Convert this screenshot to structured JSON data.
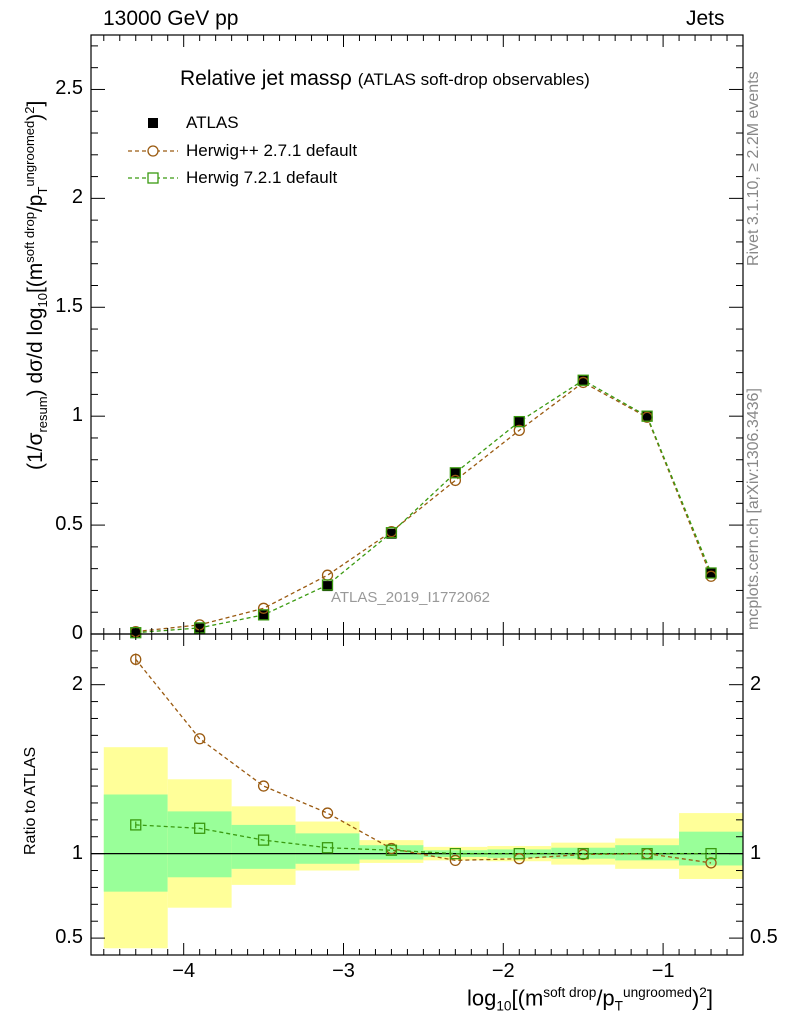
{
  "header": {
    "energy_label": "13000 GeV pp",
    "process_label": "Jets"
  },
  "side_labels": {
    "rivet": "Rivet 3.1.10, ≥ 2.2M events",
    "mcplots": "mcplots.cern.ch [arXiv:1306.3436]"
  },
  "analysis_id": "ATLAS_2019_I1772062",
  "colors": {
    "data": "#000000",
    "herwig_pp": "#9a5a10",
    "herwig_7": "#3a9a10",
    "band_inner": "#99ff99",
    "band_outer": "#ffff99"
  },
  "chart_data": {
    "type": "scatter",
    "title_main": "Relative jet massρ",
    "title_sub": "(ATLAS soft-drop observables)",
    "xlabel_parts": {
      "log": "log",
      "sub10": "10",
      "m": "[(m",
      "soft_drop": "soft drop",
      "slash_p": "/p",
      "T": "T",
      "ungroomed": "ungroomed",
      "close": ")",
      "two": "2",
      "end": "]"
    },
    "ylabel_parts": {
      "a": "(1/σ",
      "resum": "resum",
      "b": ") dσ/d log",
      "sub10": "10",
      "c": "[(m",
      "soft_drop": "soft drop",
      "slash_p": "/p",
      "T": "T",
      "ungroomed": "ungroomed",
      "close": ")",
      "two": "2",
      "end": "]"
    },
    "ratio_ylabel": "Ratio to ATLAS",
    "xlim": [
      -4.58,
      -0.5
    ],
    "ylim_main": [
      0,
      2.75
    ],
    "ylim_ratio": [
      0.4,
      2.3
    ],
    "x_ticks": [
      -4,
      -3,
      -2,
      -1
    ],
    "x_tick_labels": [
      "−4",
      "−3",
      "−2",
      "−1"
    ],
    "y_ticks_main": [
      0,
      0.5,
      1,
      1.5,
      2,
      2.5
    ],
    "y_tick_labels_main": [
      "0",
      "0.5",
      "1",
      "1.5",
      "2",
      "2.5"
    ],
    "y_ticks_ratio": [
      0.5,
      1,
      2
    ],
    "y_tick_labels_ratio": [
      "0.5",
      "1",
      "2"
    ],
    "bin_edges": [
      -4.5,
      -4.1,
      -3.7,
      -3.3,
      -2.9,
      -2.5,
      -2.1,
      -1.7,
      -1.3,
      -0.9,
      -0.5
    ],
    "x": [
      -4.3,
      -3.9,
      -3.5,
      -3.1,
      -2.7,
      -2.3,
      -1.9,
      -1.5,
      -1.1,
      -0.7
    ],
    "legend_position": "top-left",
    "series": [
      {
        "name": "ATLAS",
        "marker": "filled-square",
        "values": [
          0.005,
          0.025,
          0.085,
          0.22,
          0.46,
          0.74,
          0.975,
          1.165,
          1.0,
          0.28
        ]
      },
      {
        "name": "Herwig++ 2.7.1 default",
        "marker": "open-circle",
        "values": [
          0.011,
          0.042,
          0.118,
          0.27,
          0.47,
          0.705,
          0.935,
          1.155,
          0.995,
          0.265
        ],
        "ratio": [
          2.15,
          1.68,
          1.4,
          1.24,
          1.03,
          0.96,
          0.97,
          0.995,
          1.0,
          0.945
        ]
      },
      {
        "name": "Herwig 7.2.1 default",
        "marker": "open-square",
        "values": [
          0.006,
          0.028,
          0.088,
          0.225,
          0.465,
          0.74,
          0.975,
          1.165,
          1.0,
          0.28
        ],
        "ratio": [
          1.17,
          1.15,
          1.08,
          1.035,
          1.02,
          1.0,
          1.0,
          1.0,
          1.0,
          1.0
        ]
      }
    ],
    "ratio_bands": {
      "inner_lo": [
        0.775,
        0.86,
        0.91,
        0.94,
        0.965,
        0.98,
        0.975,
        0.97,
        0.96,
        0.93
      ],
      "inner_hi": [
        1.35,
        1.25,
        1.17,
        1.12,
        1.05,
        1.02,
        1.025,
        1.035,
        1.05,
        1.13
      ],
      "outer_lo": [
        0.44,
        0.68,
        0.815,
        0.9,
        0.945,
        0.96,
        0.955,
        0.935,
        0.91,
        0.85
      ],
      "outer_hi": [
        1.63,
        1.44,
        1.28,
        1.19,
        1.08,
        1.04,
        1.045,
        1.065,
        1.09,
        1.24
      ]
    }
  }
}
